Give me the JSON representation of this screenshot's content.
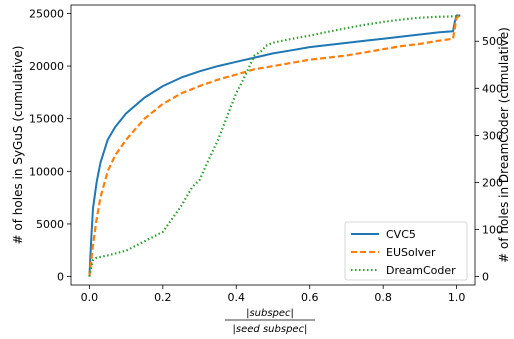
{
  "chart_data": {
    "type": "line",
    "xlabel_numerator": "|subspec|",
    "xlabel_denominator": "|seed subspec|",
    "ylabel_left": "# of holes in SyGuS (cumulative)",
    "ylabel_right": "# of holes in DreamCoder (cumulative)",
    "xlim": [
      -0.05,
      1.05
    ],
    "ylim_left": [
      -800,
      25800
    ],
    "ylim_right": [
      -17.9,
      577
    ],
    "x_ticks": [
      0.0,
      0.2,
      0.4,
      0.6,
      0.8,
      1.0
    ],
    "x_tick_labels": [
      "0.0",
      "0.2",
      "0.4",
      "0.6",
      "0.8",
      "1.0"
    ],
    "y_left_ticks": [
      0,
      5000,
      10000,
      15000,
      20000,
      25000
    ],
    "y_left_tick_labels": [
      "0",
      "5000",
      "10000",
      "15000",
      "20000",
      "25000"
    ],
    "y_right_ticks": [
      0,
      100,
      200,
      300,
      400,
      500
    ],
    "y_right_tick_labels": [
      "0",
      "100",
      "200",
      "300",
      "400",
      "500"
    ],
    "legend_position": "lower-right",
    "grid": false,
    "series": [
      {
        "name": "CVC5",
        "axis": "left",
        "color": "#1f77b4",
        "style": "solid",
        "x": [
          0.0,
          0.005,
          0.01,
          0.02,
          0.03,
          0.05,
          0.07,
          0.1,
          0.15,
          0.2,
          0.25,
          0.3,
          0.35,
          0.4,
          0.45,
          0.5,
          0.55,
          0.6,
          0.65,
          0.7,
          0.75,
          0.8,
          0.85,
          0.9,
          0.95,
          0.99,
          0.995,
          1.0,
          1.01
        ],
        "y": [
          0,
          3500,
          6500,
          9000,
          10800,
          13000,
          14200,
          15500,
          17000,
          18100,
          18900,
          19500,
          20000,
          20400,
          20800,
          21200,
          21500,
          21800,
          22000,
          22200,
          22400,
          22600,
          22800,
          23000,
          23200,
          23300,
          24200,
          24800,
          24800
        ]
      },
      {
        "name": "EUSolver",
        "axis": "left",
        "color": "#ff7f0e",
        "style": "dashed",
        "x": [
          0.0,
          0.005,
          0.01,
          0.02,
          0.03,
          0.05,
          0.07,
          0.1,
          0.15,
          0.2,
          0.25,
          0.3,
          0.35,
          0.4,
          0.45,
          0.5,
          0.55,
          0.6,
          0.65,
          0.7,
          0.75,
          0.8,
          0.85,
          0.9,
          0.95,
          0.99,
          0.995,
          1.0,
          1.01
        ],
        "y": [
          0,
          1500,
          3000,
          5500,
          7500,
          10000,
          11500,
          13000,
          15000,
          16400,
          17400,
          18100,
          18700,
          19200,
          19700,
          20000,
          20300,
          20600,
          20800,
          21000,
          21300,
          21600,
          21900,
          22100,
          22400,
          22600,
          23600,
          24600,
          24800
        ]
      },
      {
        "name": "DreamCoder",
        "axis": "right",
        "color": "#2ca02c",
        "style": "dotted",
        "x": [
          0.0,
          0.005,
          0.01,
          0.02,
          0.05,
          0.1,
          0.15,
          0.2,
          0.25,
          0.28,
          0.3,
          0.32,
          0.35,
          0.38,
          0.4,
          0.42,
          0.45,
          0.47,
          0.48,
          0.5,
          0.55,
          0.6,
          0.65,
          0.7,
          0.75,
          0.8,
          0.85,
          0.9,
          0.95,
          1.0
        ],
        "y": [
          0,
          20,
          35,
          40,
          45,
          55,
          75,
          95,
          150,
          190,
          205,
          240,
          290,
          350,
          390,
          420,
          470,
          480,
          490,
          497,
          505,
          512,
          520,
          528,
          535,
          541,
          546,
          550,
          552,
          553
        ]
      }
    ]
  }
}
